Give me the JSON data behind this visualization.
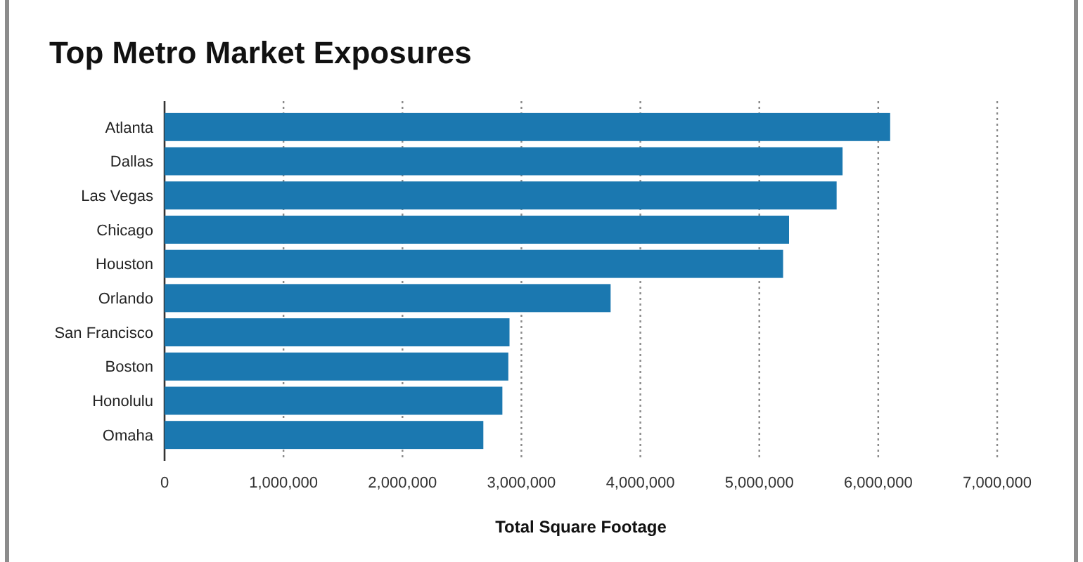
{
  "chart_data": {
    "type": "bar",
    "orientation": "horizontal",
    "title": "Top Metro Market Exposures",
    "xlabel": "Total Square Footage",
    "categories": [
      "Atlanta",
      "Dallas",
      "Las Vegas",
      "Chicago",
      "Houston",
      "Orlando",
      "San Francisco",
      "Boston",
      "Honolulu",
      "Omaha"
    ],
    "values": [
      6100000,
      5700000,
      5650000,
      5250000,
      5200000,
      3750000,
      2900000,
      2890000,
      2840000,
      2680000
    ],
    "color": "#1b78b0",
    "xlim": [
      0,
      7000000
    ],
    "xticks": [
      0,
      {
        "value": 1000000,
        "label": "1,000,000"
      },
      {
        "value": 2000000,
        "label": "2,000,000"
      },
      {
        "value": 3000000,
        "label": "3,000,000"
      },
      {
        "value": 4000000,
        "label": "4,000,000"
      },
      {
        "value": 5000000,
        "label": "5,000,000"
      },
      {
        "value": 6000000,
        "label": "6,000,000"
      },
      {
        "value": 7000000,
        "label": "7,000,000"
      }
    ],
    "grid": "x"
  }
}
